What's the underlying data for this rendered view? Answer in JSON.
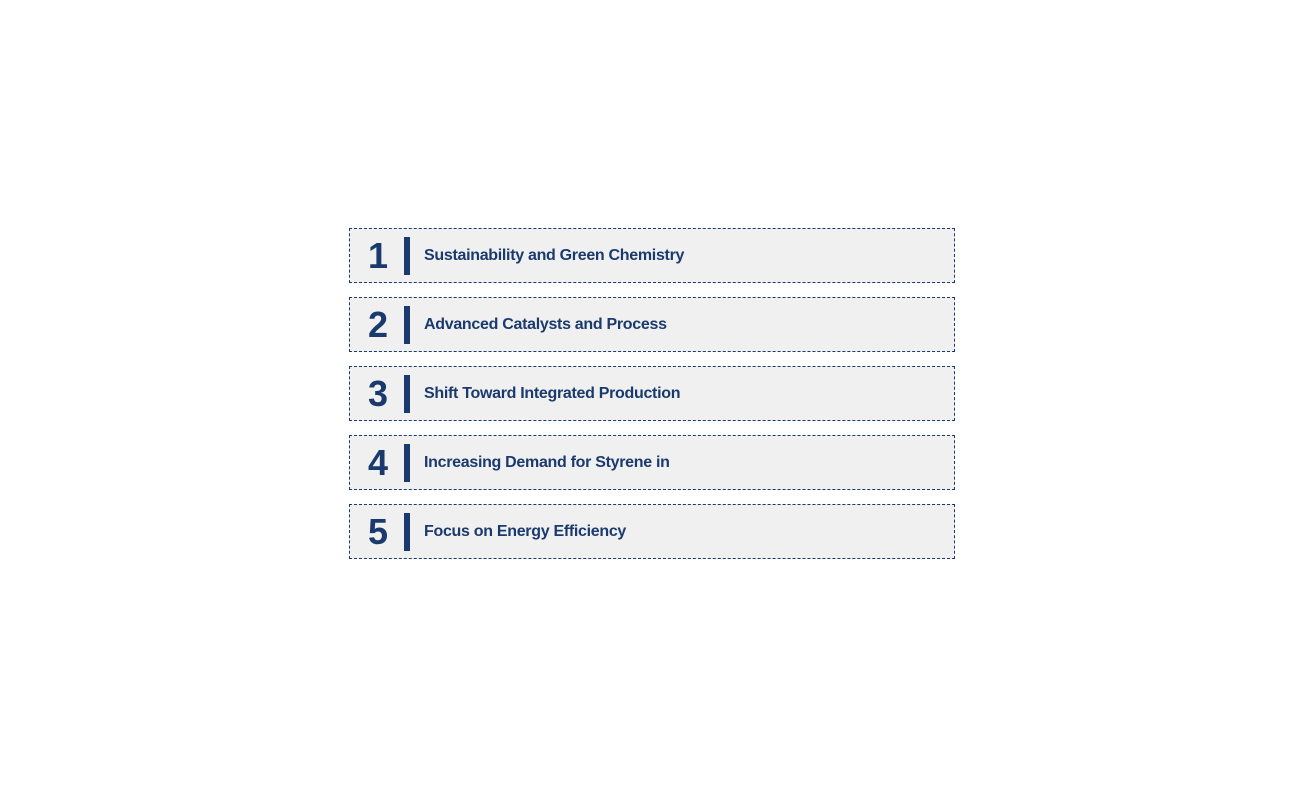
{
  "list": {
    "type": "infographic",
    "background_color": "#ffffff",
    "item_background": "#f0f0f0",
    "border_color": "#1a3a6e",
    "border_style": "dashed",
    "text_color": "#1a3a6e",
    "number_fontsize": 36,
    "label_fontsize": 16,
    "divider_color": "#1a3a6e",
    "item_height": 55,
    "item_width": 606,
    "gap": 14,
    "items": [
      {
        "number": "1",
        "label": "Sustainability and Green Chemistry"
      },
      {
        "number": "2",
        "label": "Advanced Catalysts and Process"
      },
      {
        "number": "3",
        "label": "Shift Toward Integrated Production"
      },
      {
        "number": "4",
        "label": "Increasing Demand for Styrene in"
      },
      {
        "number": "5",
        "label": "Focus on Energy Efficiency"
      }
    ]
  }
}
